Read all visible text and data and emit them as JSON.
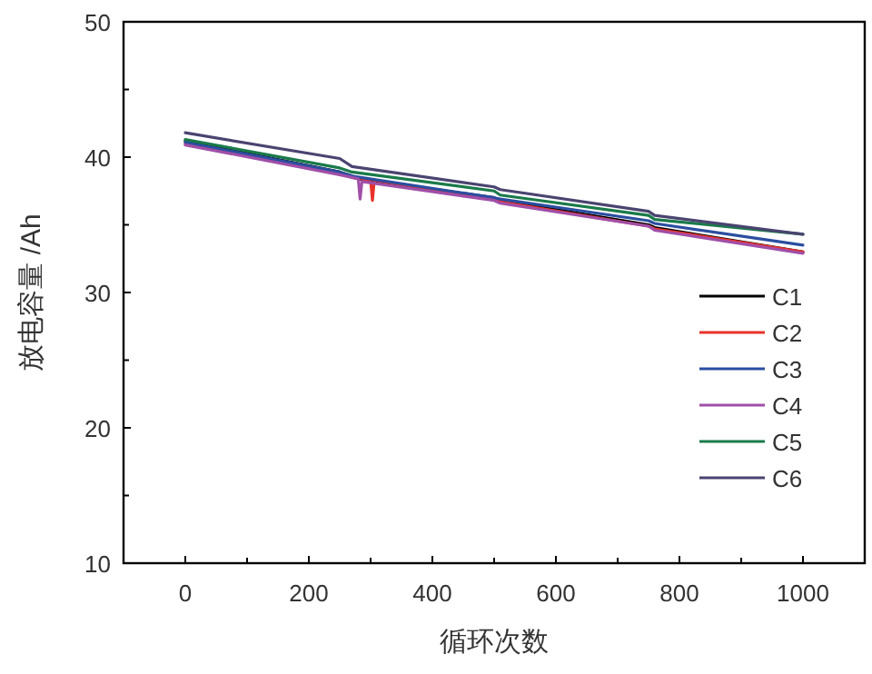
{
  "chart_data": {
    "type": "line",
    "xlabel": "循环次数",
    "ylabel": "放电容量 /Ah",
    "xlim": [
      -100,
      1100
    ],
    "ylim": [
      10,
      50
    ],
    "xticks": [
      0,
      {
        "value": 100,
        "label": null
      },
      200,
      {
        "value": 300,
        "label": null
      },
      400,
      {
        "value": 500,
        "label": null
      },
      600,
      {
        "value": 700,
        "label": null
      },
      800,
      {
        "value": 900,
        "label": null
      },
      1000
    ],
    "yticks": [
      10,
      {
        "value": 15,
        "label": null
      },
      20,
      {
        "value": 25,
        "label": null
      },
      30,
      {
        "value": 35,
        "label": null
      },
      40,
      {
        "value": 45,
        "label": null
      },
      50
    ],
    "grid": false,
    "legend": "right",
    "marker": "none",
    "line_style": "solid",
    "series": [
      {
        "name": "C1",
        "color": "#000000",
        "x": [
          0,
          250,
          270,
          280,
          500,
          510,
          750,
          760,
          1000
        ],
        "values": [
          41.2,
          38.9,
          38.6,
          38.4,
          37.0,
          36.8,
          35.0,
          34.8,
          33.0
        ]
      },
      {
        "name": "C2",
        "color": "#e8322a",
        "x": [
          0,
          250,
          270,
          300,
          303,
          306,
          500,
          510,
          750,
          760,
          1000
        ],
        "values": [
          41.0,
          38.8,
          38.5,
          38.3,
          36.8,
          38.3,
          36.9,
          36.7,
          34.9,
          34.7,
          33.0
        ]
      },
      {
        "name": "C3",
        "color": "#2b4ea0",
        "x": [
          0,
          250,
          270,
          500,
          510,
          750,
          760,
          1000
        ],
        "values": [
          41.1,
          38.9,
          38.6,
          37.0,
          36.9,
          35.3,
          35.1,
          33.5
        ]
      },
      {
        "name": "C4",
        "color": "#a04fa8",
        "x": [
          0,
          250,
          280,
          283,
          286,
          500,
          510,
          750,
          760,
          1000
        ],
        "values": [
          40.9,
          38.7,
          38.4,
          36.9,
          38.2,
          36.8,
          36.6,
          34.9,
          34.6,
          32.9
        ]
      },
      {
        "name": "C5",
        "color": "#1a7a4a",
        "x": [
          0,
          250,
          270,
          500,
          510,
          750,
          760,
          1000
        ],
        "values": [
          41.3,
          39.2,
          38.9,
          37.5,
          37.2,
          35.7,
          35.4,
          34.3
        ]
      },
      {
        "name": "C6",
        "color": "#4a4470",
        "x": [
          0,
          250,
          270,
          500,
          510,
          750,
          760,
          1000
        ],
        "values": [
          41.8,
          39.9,
          39.3,
          37.8,
          37.6,
          36.0,
          35.7,
          34.3
        ]
      }
    ]
  }
}
